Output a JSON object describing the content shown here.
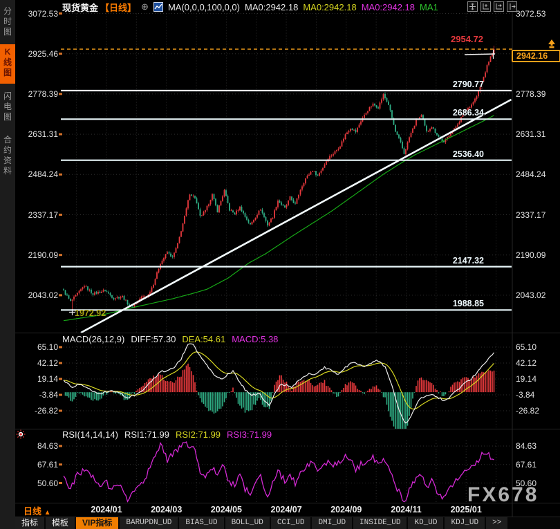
{
  "header": {
    "symbol": "现货黄金",
    "period_tag": "【日线】",
    "plus_icon": "⊕",
    "ma_params": "MA(0,0,0,100,0,0)",
    "ma0_white": "MA0:2942.18",
    "ma0_yellow": "MA0:2942.18",
    "ma0_magenta": "MA0:2942.18",
    "ma1": "MA1"
  },
  "sidebar": {
    "tabs": [
      {
        "label": "分时图",
        "active": false
      },
      {
        "label": "K线图",
        "active": true
      },
      {
        "label": "闪电图",
        "active": false
      },
      {
        "label": "合约资料",
        "active": false
      }
    ]
  },
  "price_axis_labels": [
    "3072.53",
    "2925.46",
    "2778.39",
    "2631.31",
    "2484.24",
    "2337.17",
    "2190.09",
    "2043.02"
  ],
  "levels": [
    {
      "label": "2790.77",
      "price": 2790.77
    },
    {
      "label": "2686.34",
      "price": 2686.34
    },
    {
      "label": "2536.40",
      "price": 2536.4
    },
    {
      "label": "2147.32",
      "price": 2147.32
    },
    {
      "label": "1988.85",
      "price": 1988.85
    }
  ],
  "annotations": {
    "high_label": "2954.72",
    "current_price": "2942.16",
    "low_label": "1972.92"
  },
  "macd": {
    "title": "MACD(26,12,9)",
    "diff_label": "DIFF:57.30",
    "dea_label": "DEA:54.61",
    "macd_label": "MACD:5.38",
    "axis_labels": [
      "65.10",
      "42.12",
      "19.14",
      "-3.84",
      "-26.82"
    ]
  },
  "rsi": {
    "title": "RSI(14,14,14)",
    "rsi1_label": "RSI1:71.99",
    "rsi2_label": "RSI2:71.99",
    "rsi3_label": "RSI3:71.99",
    "axis_labels": [
      "84.63",
      "67.61",
      "50.60"
    ]
  },
  "xaxis": {
    "period_label": "日线",
    "period_arrow": "▲",
    "dates": [
      "2024/01",
      "2024/03",
      "2024/05",
      "2024/07",
      "2024/09",
      "2024/11",
      "2025/01"
    ]
  },
  "toolbar": {
    "items": [
      {
        "label": "指标",
        "cjk": true,
        "active": false
      },
      {
        "label": "模板",
        "cjk": true,
        "active": false
      },
      {
        "label": "VIP指标",
        "cjk": true,
        "active": true
      },
      {
        "label": "BARUPDN_UD",
        "cjk": false,
        "active": false
      },
      {
        "label": "BIAS_UD",
        "cjk": false,
        "active": false
      },
      {
        "label": "BOLL_UD",
        "cjk": false,
        "active": false
      },
      {
        "label": "CCI_UD",
        "cjk": false,
        "active": false
      },
      {
        "label": "DMI_UD",
        "cjk": false,
        "active": false
      },
      {
        "label": "INSIDE_UD",
        "cjk": false,
        "active": false
      },
      {
        "label": "KD_UD",
        "cjk": false,
        "active": false
      },
      {
        "label": "KDJ_UD",
        "cjk": false,
        "active": false
      },
      {
        "label": ">>",
        "cjk": false,
        "active": false
      }
    ]
  },
  "watermark": "FX678",
  "colors": {
    "up_candle": "#e8393d",
    "down_candle": "#2fae85",
    "ma_line": "#17a817",
    "level_line": "#e9f7fa",
    "trend_line": "#f2fbfd",
    "accent_orange": "#f7a11a",
    "diff_line": "#ededed",
    "dea_line": "#d6d621",
    "rsi_line": "#d429d4",
    "grid": "#2e2e2e",
    "active_tab": "#f26000"
  },
  "chart_data": {
    "type": "candlestick",
    "symbol": "现货黄金",
    "period": "日线",
    "x_tick_labels": [
      "2024/01",
      "2024/03",
      "2024/05",
      "2024/07",
      "2024/09",
      "2024/11",
      "2025/01"
    ],
    "y_axis_main": [
      3072.53,
      2925.46,
      2778.39,
      2631.31,
      2484.24,
      2337.17,
      2190.09,
      2043.02
    ],
    "y_axis_macd": [
      65.1,
      42.12,
      19.14,
      -3.84,
      -26.82
    ],
    "y_axis_rsi": [
      84.63,
      67.61,
      50.6
    ],
    "num_candles": 250,
    "last_candle": {
      "high": 2954.72,
      "close": 2942.16
    },
    "marked_low": {
      "index": 5,
      "low": 1972.92
    },
    "horizontal_levels": [
      2790.77,
      2686.34,
      2536.4,
      2147.32,
      1988.85
    ],
    "current_price_line": 2942.16,
    "trendline": {
      "from": {
        "index": 10,
        "price": 1906
      },
      "to": {
        "index": 259,
        "price": 2758
      }
    },
    "close_anchors": [
      [
        0,
        2058
      ],
      [
        4,
        2020
      ],
      [
        7,
        2040
      ],
      [
        12,
        2078
      ],
      [
        17,
        2048
      ],
      [
        24,
        2060
      ],
      [
        29,
        2032
      ],
      [
        34,
        2038
      ],
      [
        39,
        1998
      ],
      [
        45,
        2035
      ],
      [
        49,
        2045
      ],
      [
        52,
        2085
      ],
      [
        56,
        2160
      ],
      [
        60,
        2200
      ],
      [
        63,
        2180
      ],
      [
        66,
        2230
      ],
      [
        70,
        2330
      ],
      [
        73,
        2415
      ],
      [
        76,
        2400
      ],
      [
        79,
        2330
      ],
      [
        82,
        2350
      ],
      [
        86,
        2410
      ],
      [
        89,
        2350
      ],
      [
        93,
        2425
      ],
      [
        96,
        2355
      ],
      [
        99,
        2340
      ],
      [
        102,
        2365
      ],
      [
        105,
        2330
      ],
      [
        108,
        2300
      ],
      [
        111,
        2330
      ],
      [
        114,
        2358
      ],
      [
        118,
        2300
      ],
      [
        121,
        2330
      ],
      [
        124,
        2390
      ],
      [
        128,
        2360
      ],
      [
        131,
        2400
      ],
      [
        134,
        2375
      ],
      [
        137,
        2430
      ],
      [
        140,
        2470
      ],
      [
        144,
        2500
      ],
      [
        147,
        2480
      ],
      [
        150,
        2510
      ],
      [
        153,
        2545
      ],
      [
        156,
        2560
      ],
      [
        160,
        2590
      ],
      [
        163,
        2630
      ],
      [
        166,
        2655
      ],
      [
        169,
        2640
      ],
      [
        172,
        2680
      ],
      [
        176,
        2720
      ],
      [
        179,
        2740
      ],
      [
        182,
        2730
      ],
      [
        185,
        2775
      ],
      [
        188,
        2740
      ],
      [
        192,
        2640
      ],
      [
        195,
        2600
      ],
      [
        197,
        2560
      ],
      [
        200,
        2620
      ],
      [
        204,
        2680
      ],
      [
        207,
        2700
      ],
      [
        210,
        2640
      ],
      [
        213,
        2660
      ],
      [
        216,
        2630
      ],
      [
        220,
        2600
      ],
      [
        223,
        2630
      ],
      [
        226,
        2650
      ],
      [
        229,
        2680
      ],
      [
        232,
        2715
      ],
      [
        236,
        2740
      ],
      [
        239,
        2770
      ],
      [
        242,
        2820
      ],
      [
        245,
        2880
      ],
      [
        248,
        2930
      ],
      [
        249,
        2942.16
      ]
    ],
    "ma100_anchors": [
      [
        0,
        1950
      ],
      [
        23,
        1972
      ],
      [
        43,
        2002
      ],
      [
        63,
        2030
      ],
      [
        75,
        2050
      ],
      [
        83,
        2065
      ],
      [
        95,
        2105
      ],
      [
        107,
        2160
      ],
      [
        117,
        2195
      ],
      [
        133,
        2262
      ],
      [
        145,
        2310
      ],
      [
        155,
        2350
      ],
      [
        165,
        2395
      ],
      [
        175,
        2440
      ],
      [
        185,
        2485
      ],
      [
        195,
        2525
      ],
      [
        203,
        2555
      ],
      [
        211,
        2580
      ],
      [
        219,
        2605
      ],
      [
        227,
        2630
      ],
      [
        235,
        2655
      ],
      [
        243,
        2680
      ],
      [
        249,
        2700
      ]
    ],
    "macd_last": {
      "diff": 57.3,
      "dea": 54.61,
      "macd": 5.38
    },
    "macd_diff_anchors": [
      [
        0,
        17
      ],
      [
        5,
        8
      ],
      [
        10,
        12
      ],
      [
        15,
        4
      ],
      [
        21,
        -2
      ],
      [
        27,
        2
      ],
      [
        32,
        -1
      ],
      [
        37,
        -8
      ],
      [
        42,
        -4
      ],
      [
        46,
        2
      ],
      [
        51,
        16
      ],
      [
        56,
        30
      ],
      [
        60,
        30
      ],
      [
        64,
        36
      ],
      [
        68,
        48
      ],
      [
        72,
        70
      ],
      [
        75,
        68
      ],
      [
        79,
        52
      ],
      [
        83,
        38
      ],
      [
        87,
        26
      ],
      [
        91,
        18
      ],
      [
        95,
        26
      ],
      [
        98,
        30
      ],
      [
        101,
        18
      ],
      [
        105,
        4
      ],
      [
        109,
        -4
      ],
      [
        113,
        -2
      ],
      [
        117,
        -14
      ],
      [
        119,
        -20
      ],
      [
        123,
        2
      ],
      [
        126,
        12
      ],
      [
        129,
        10
      ],
      [
        132,
        6
      ],
      [
        135,
        14
      ],
      [
        138,
        20
      ],
      [
        142,
        26
      ],
      [
        145,
        24
      ],
      [
        148,
        30
      ],
      [
        151,
        36
      ],
      [
        154,
        32
      ],
      [
        158,
        26
      ],
      [
        161,
        30
      ],
      [
        164,
        38
      ],
      [
        167,
        44
      ],
      [
        170,
        40
      ],
      [
        174,
        36
      ],
      [
        177,
        40
      ],
      [
        180,
        46
      ],
      [
        183,
        44
      ],
      [
        186,
        36
      ],
      [
        190,
        10
      ],
      [
        193,
        -18
      ],
      [
        196,
        -38
      ],
      [
        198,
        -46
      ],
      [
        201,
        -34
      ],
      [
        204,
        -18
      ],
      [
        207,
        -8
      ],
      [
        210,
        -6
      ],
      [
        214,
        -4
      ],
      [
        217,
        -8
      ],
      [
        220,
        -12
      ],
      [
        223,
        -8
      ],
      [
        226,
        0
      ],
      [
        230,
        8
      ],
      [
        233,
        14
      ],
      [
        236,
        20
      ],
      [
        239,
        28
      ],
      [
        242,
        38
      ],
      [
        246,
        48
      ],
      [
        249,
        57.3
      ]
    ],
    "rsi_last": {
      "rsi1": 71.99,
      "rsi2": 71.99,
      "rsi3": 71.99
    },
    "rsi_anchors": [
      [
        0,
        55
      ],
      [
        4,
        45
      ],
      [
        8,
        58
      ],
      [
        12,
        62
      ],
      [
        17,
        55
      ],
      [
        21,
        48
      ],
      [
        24,
        55
      ],
      [
        27,
        44
      ],
      [
        32,
        50
      ],
      [
        37,
        36
      ],
      [
        42,
        48
      ],
      [
        46,
        52
      ],
      [
        51,
        68
      ],
      [
        54,
        80
      ],
      [
        56,
        87
      ],
      [
        60,
        72
      ],
      [
        64,
        78
      ],
      [
        68,
        85
      ],
      [
        72,
        86
      ],
      [
        76,
        80
      ],
      [
        79,
        62
      ],
      [
        82,
        55
      ],
      [
        86,
        65
      ],
      [
        89,
        58
      ],
      [
        92,
        68
      ],
      [
        95,
        52
      ],
      [
        99,
        50
      ],
      [
        102,
        58
      ],
      [
        105,
        45
      ],
      [
        108,
        40
      ],
      [
        111,
        52
      ],
      [
        114,
        56
      ],
      [
        118,
        38
      ],
      [
        121,
        52
      ],
      [
        124,
        62
      ],
      [
        128,
        52
      ],
      [
        131,
        60
      ],
      [
        134,
        50
      ],
      [
        137,
        60
      ],
      [
        140,
        66
      ],
      [
        144,
        70
      ],
      [
        147,
        60
      ],
      [
        150,
        65
      ],
      [
        153,
        70
      ],
      [
        156,
        68
      ],
      [
        160,
        70
      ],
      [
        163,
        74
      ],
      [
        166,
        72
      ],
      [
        169,
        62
      ],
      [
        172,
        68
      ],
      [
        176,
        73
      ],
      [
        179,
        74
      ],
      [
        182,
        66
      ],
      [
        185,
        72
      ],
      [
        188,
        64
      ],
      [
        192,
        48
      ],
      [
        195,
        40
      ],
      [
        197,
        31
      ],
      [
        200,
        45
      ],
      [
        204,
        56
      ],
      [
        207,
        58
      ],
      [
        210,
        46
      ],
      [
        213,
        52
      ],
      [
        216,
        44
      ],
      [
        220,
        36
      ],
      [
        223,
        46
      ],
      [
        226,
        52
      ],
      [
        229,
        58
      ],
      [
        232,
        64
      ],
      [
        236,
        66
      ],
      [
        239,
        70
      ],
      [
        242,
        76
      ],
      [
        245,
        78
      ],
      [
        248,
        71
      ],
      [
        249,
        71.99
      ]
    ]
  }
}
